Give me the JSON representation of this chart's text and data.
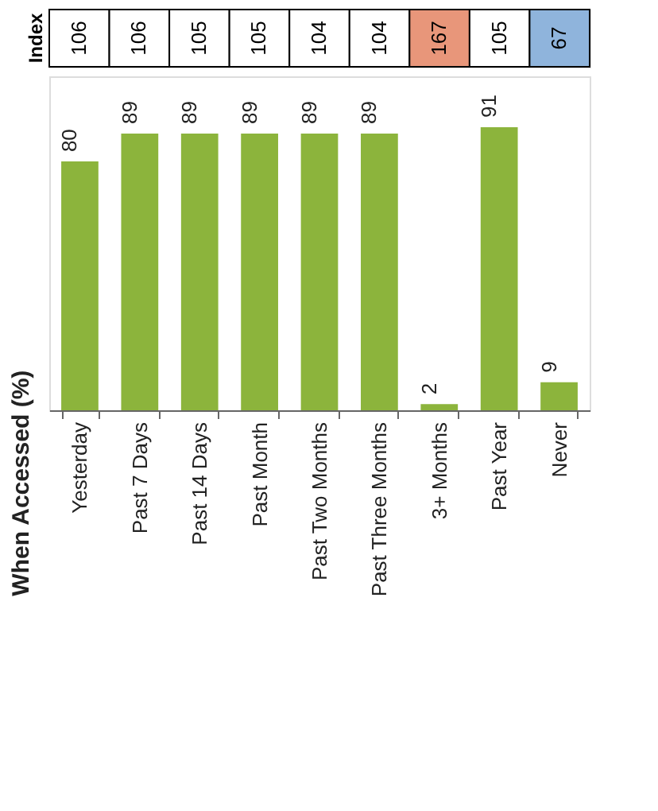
{
  "chart_data": [
    {
      "type": "heatmap",
      "categories": [
        null,
        null,
        null,
        null,
        null,
        null,
        null,
        null,
        null
      ],
      "y_categories": [
        "Index"
      ],
      "cells": [
        [
          106,
          106,
          105,
          105,
          104,
          104,
          167,
          105,
          67
        ]
      ],
      "colors": [
        "#ffffff",
        "#ffffff",
        "#ffffff",
        "#ffffff",
        "#ffffff",
        "#ffffff",
        "#e8967a",
        "#ffffff",
        "#8fb4dc"
      ],
      "data_labels": true,
      "tick_labels": "y"
    },
    {
      "type": "bar",
      "title": "When Accessed (%)",
      "categories": [
        "Yesterday",
        "Past 7 Days",
        "Past 14 Days",
        "Past Month",
        "Past Two Months",
        "Past Three Months",
        "3+ Months",
        "Past Year",
        "Never"
      ],
      "values": [
        80,
        89,
        89,
        89,
        89,
        89,
        2,
        91,
        9
      ],
      "color": "#8cb43c",
      "data_labels": true
    }
  ]
}
